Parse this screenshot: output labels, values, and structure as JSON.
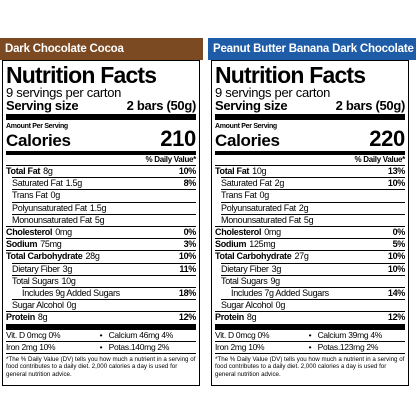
{
  "products": [
    {
      "name": "Dark Chocolate Cocoa",
      "title": "Nutrition Facts",
      "servings": "9 servings per carton",
      "serving_size_label": "Serving size",
      "serving_size": "2 bars (50g)",
      "amount_per_serving": "Amount Per Serving",
      "calories_label": "Calories",
      "calories": "210",
      "dv_header": "% Daily Value*",
      "nutrients": [
        {
          "label": "Total Fat",
          "amount": "8g",
          "dv": "10%",
          "sub": [
            {
              "label": "Saturated Fat",
              "amount": "1.5g",
              "dv": "8%"
            },
            {
              "label": "Trans Fat",
              "amount": "0g"
            },
            {
              "label": "Polyunsaturated Fat",
              "amount": "1.5g"
            },
            {
              "label": "Monounsaturated Fat",
              "amount": "5g"
            }
          ]
        },
        {
          "label": "Cholesterol",
          "amount": "0mg",
          "dv": "0%"
        },
        {
          "label": "Sodium",
          "amount": "75mg",
          "dv": "3%"
        },
        {
          "label": "Total Carbohydrate",
          "amount": "28g",
          "dv": "10%",
          "sub": [
            {
              "label": "Dietary Fiber",
              "amount": "3g",
              "dv": "11%"
            },
            {
              "label": "Total Sugars",
              "amount": "10g",
              "sub": [
                {
                  "label": "Includes 9g Added Sugars",
                  "dv": "18%"
                }
              ]
            },
            {
              "label": "Sugar Alcohol",
              "amount": "0g"
            }
          ]
        },
        {
          "label": "Protein",
          "amount": "8g",
          "dv": "12%"
        }
      ],
      "minerals": [
        [
          "Vit. D 0mcg 0%",
          "Calcium 46mg 4%"
        ],
        [
          "Iron 2mg 10%",
          "Potas.140mg 2%"
        ]
      ],
      "footnote": "*The % Daily Value (DV) tells you how much a nutrient in a serving of food contributes to a daily diet. 2,000 calories a day is used for general nutrition advice."
    },
    {
      "name": "Peanut Butter Banana Dark Chocolate",
      "title": "Nutrition Facts",
      "servings": "9 servings per carton",
      "serving_size_label": "Serving size",
      "serving_size": "2 bars (50g)",
      "amount_per_serving": "Amount Per Serving",
      "calories_label": "Calories",
      "calories": "220",
      "dv_header": "% Daily Value*",
      "nutrients": [
        {
          "label": "Total Fat",
          "amount": "10g",
          "dv": "13%",
          "sub": [
            {
              "label": "Saturated Fat",
              "amount": "2g",
              "dv": "10%"
            },
            {
              "label": "Trans Fat",
              "amount": "0g"
            },
            {
              "label": "Polyunsaturated Fat",
              "amount": "2g"
            },
            {
              "label": "Monounsaturated Fat",
              "amount": "5g"
            }
          ]
        },
        {
          "label": "Cholesterol",
          "amount": "0mg",
          "dv": "0%"
        },
        {
          "label": "Sodium",
          "amount": "125mg",
          "dv": "5%"
        },
        {
          "label": "Total Carbohydrate",
          "amount": "27g",
          "dv": "10%",
          "sub": [
            {
              "label": "Dietary Fiber",
              "amount": "3g",
              "dv": "10%"
            },
            {
              "label": "Total Sugars",
              "amount": "9g",
              "sub": [
                {
                  "label": "Includes 7g Added Sugars",
                  "dv": "14%"
                }
              ]
            },
            {
              "label": "Sugar Alcohol",
              "amount": "0g"
            }
          ]
        },
        {
          "label": "Protein",
          "amount": "8g",
          "dv": "12%"
        }
      ],
      "minerals": [
        [
          "Vit. D 0mcg 0%",
          "Calcium 39mg 4%"
        ],
        [
          "Iron 2mg 10%",
          "Potas.123mg 2%"
        ]
      ],
      "footnote": "*The % Daily Value (DV) tells you how much a nutrient in a serving of food contributes to a daily diet. 2,000 calories a day is used for general nutrition advice."
    }
  ]
}
